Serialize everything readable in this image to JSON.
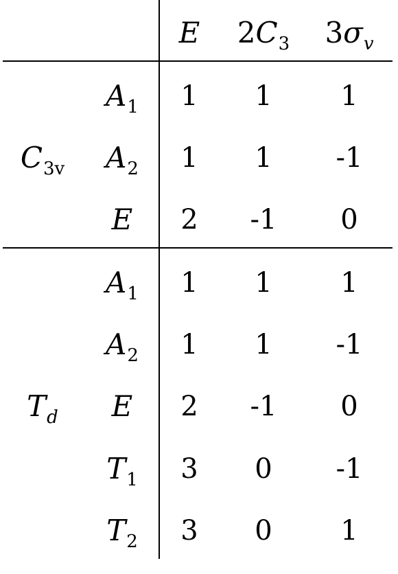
{
  "table": {
    "columns": [
      {
        "coef": "",
        "sym": "E",
        "sub": ""
      },
      {
        "coef": "2",
        "sym": "C",
        "sub": "3"
      },
      {
        "coef": "3",
        "sym": "σ",
        "sub": "v"
      }
    ],
    "groups": [
      {
        "name": {
          "sym": "C",
          "sub": "3v"
        },
        "rows": [
          {
            "label": {
              "sym": "A",
              "sub": "1"
            },
            "values": [
              "1",
              "1",
              "1"
            ]
          },
          {
            "label": {
              "sym": "A",
              "sub": "2"
            },
            "values": [
              "1",
              "1",
              "-1"
            ]
          },
          {
            "label": {
              "sym": "E",
              "sub": ""
            },
            "values": [
              "2",
              "-1",
              "0"
            ]
          }
        ]
      },
      {
        "name": {
          "sym": "T",
          "sub": "d"
        },
        "rows": [
          {
            "label": {
              "sym": "A",
              "sub": "1"
            },
            "values": [
              "1",
              "1",
              "1"
            ]
          },
          {
            "label": {
              "sym": "A",
              "sub": "2"
            },
            "values": [
              "1",
              "1",
              "-1"
            ]
          },
          {
            "label": {
              "sym": "E",
              "sub": ""
            },
            "values": [
              "2",
              "-1",
              "0"
            ]
          },
          {
            "label": {
              "sym": "T",
              "sub": "1"
            },
            "values": [
              "3",
              "0",
              "-1"
            ]
          },
          {
            "label": {
              "sym": "T",
              "sub": "2"
            },
            "values": [
              "3",
              "0",
              "1"
            ]
          }
        ]
      }
    ]
  }
}
